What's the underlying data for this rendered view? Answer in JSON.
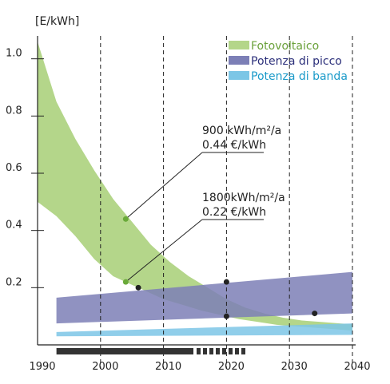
{
  "chart_data": {
    "type": "area",
    "title": "",
    "xlabel": "",
    "ylabel": "[E/kWh]",
    "xlim": [
      1990,
      2040
    ],
    "ylim": [
      0,
      1.08
    ],
    "x_ticks": [
      "1990",
      "2000",
      "2010",
      "2020",
      "2030",
      "2040"
    ],
    "y_ticks": [
      "0.2",
      "0.4",
      "0.6",
      "0.8",
      "1.0"
    ],
    "vertical_dashed_lines_at": [
      2000,
      2010,
      2020,
      2030,
      2040
    ],
    "grid": false,
    "legend_position": "top-right",
    "series": [
      {
        "name": "Fotovoltaico",
        "color": "#b4d68a",
        "band_upper": [
          [
            1990,
            1.06
          ],
          [
            1993,
            0.85
          ],
          [
            1996,
            0.72
          ],
          [
            1999,
            0.61
          ],
          [
            2002,
            0.51
          ],
          [
            2005,
            0.43
          ],
          [
            2008,
            0.35
          ],
          [
            2011,
            0.29
          ],
          [
            2014,
            0.24
          ],
          [
            2017,
            0.2
          ],
          [
            2020,
            0.16
          ],
          [
            2023,
            0.13
          ],
          [
            2026,
            0.11
          ],
          [
            2029,
            0.095
          ],
          [
            2032,
            0.085
          ],
          [
            2035,
            0.08
          ],
          [
            2038,
            0.075
          ],
          [
            2040,
            0.072
          ]
        ],
        "band_lower": [
          [
            1990,
            0.5
          ],
          [
            1993,
            0.45
          ],
          [
            1996,
            0.38
          ],
          [
            1999,
            0.3
          ],
          [
            2002,
            0.24
          ],
          [
            2004,
            0.22
          ],
          [
            2007,
            0.19
          ],
          [
            2010,
            0.16
          ],
          [
            2013,
            0.14
          ],
          [
            2016,
            0.12
          ],
          [
            2019,
            0.105
          ],
          [
            2022,
            0.09
          ],
          [
            2025,
            0.08
          ],
          [
            2028,
            0.07
          ],
          [
            2031,
            0.065
          ],
          [
            2034,
            0.06
          ],
          [
            2037,
            0.055
          ],
          [
            2040,
            0.05
          ]
        ]
      },
      {
        "name": "Potenza di picco",
        "color": "#7c7fb6",
        "band_upper": [
          [
            1993,
            0.165
          ],
          [
            2040,
            0.255
          ]
        ],
        "band_lower": [
          [
            1993,
            0.075
          ],
          [
            2040,
            0.11
          ]
        ]
      },
      {
        "name": "Potenza di banda",
        "color": "#7cc6e6",
        "band_upper": [
          [
            1993,
            0.045
          ],
          [
            2040,
            0.075
          ]
        ],
        "band_lower": [
          [
            1993,
            0.03
          ],
          [
            2040,
            0.035
          ]
        ]
      }
    ],
    "points": [
      {
        "x": 2004,
        "y": 0.44,
        "color": "#6aaa3a"
      },
      {
        "x": 2004,
        "y": 0.22,
        "color": "#6aaa3a"
      },
      {
        "x": 2006,
        "y": 0.2,
        "color": "#222222"
      },
      {
        "x": 2020,
        "y": 0.22,
        "color": "#222222"
      },
      {
        "x": 2020,
        "y": 0.1,
        "color": "#222222"
      },
      {
        "x": 2034,
        "y": 0.11,
        "color": "#222222"
      }
    ],
    "annotations": [
      {
        "line1": "900 kWh/m²/a",
        "line2": "0.44 €/kWh",
        "target": [
          2004,
          0.44
        ]
      },
      {
        "line1": "1800kWh/m²/a",
        "line2": "0.22 €/kWh",
        "target": [
          2004,
          0.22
        ]
      }
    ],
    "timeline_bar": {
      "solid_from": 1993,
      "solid_to": 2015,
      "dashed_to": 2024,
      "color": "#333333"
    }
  }
}
